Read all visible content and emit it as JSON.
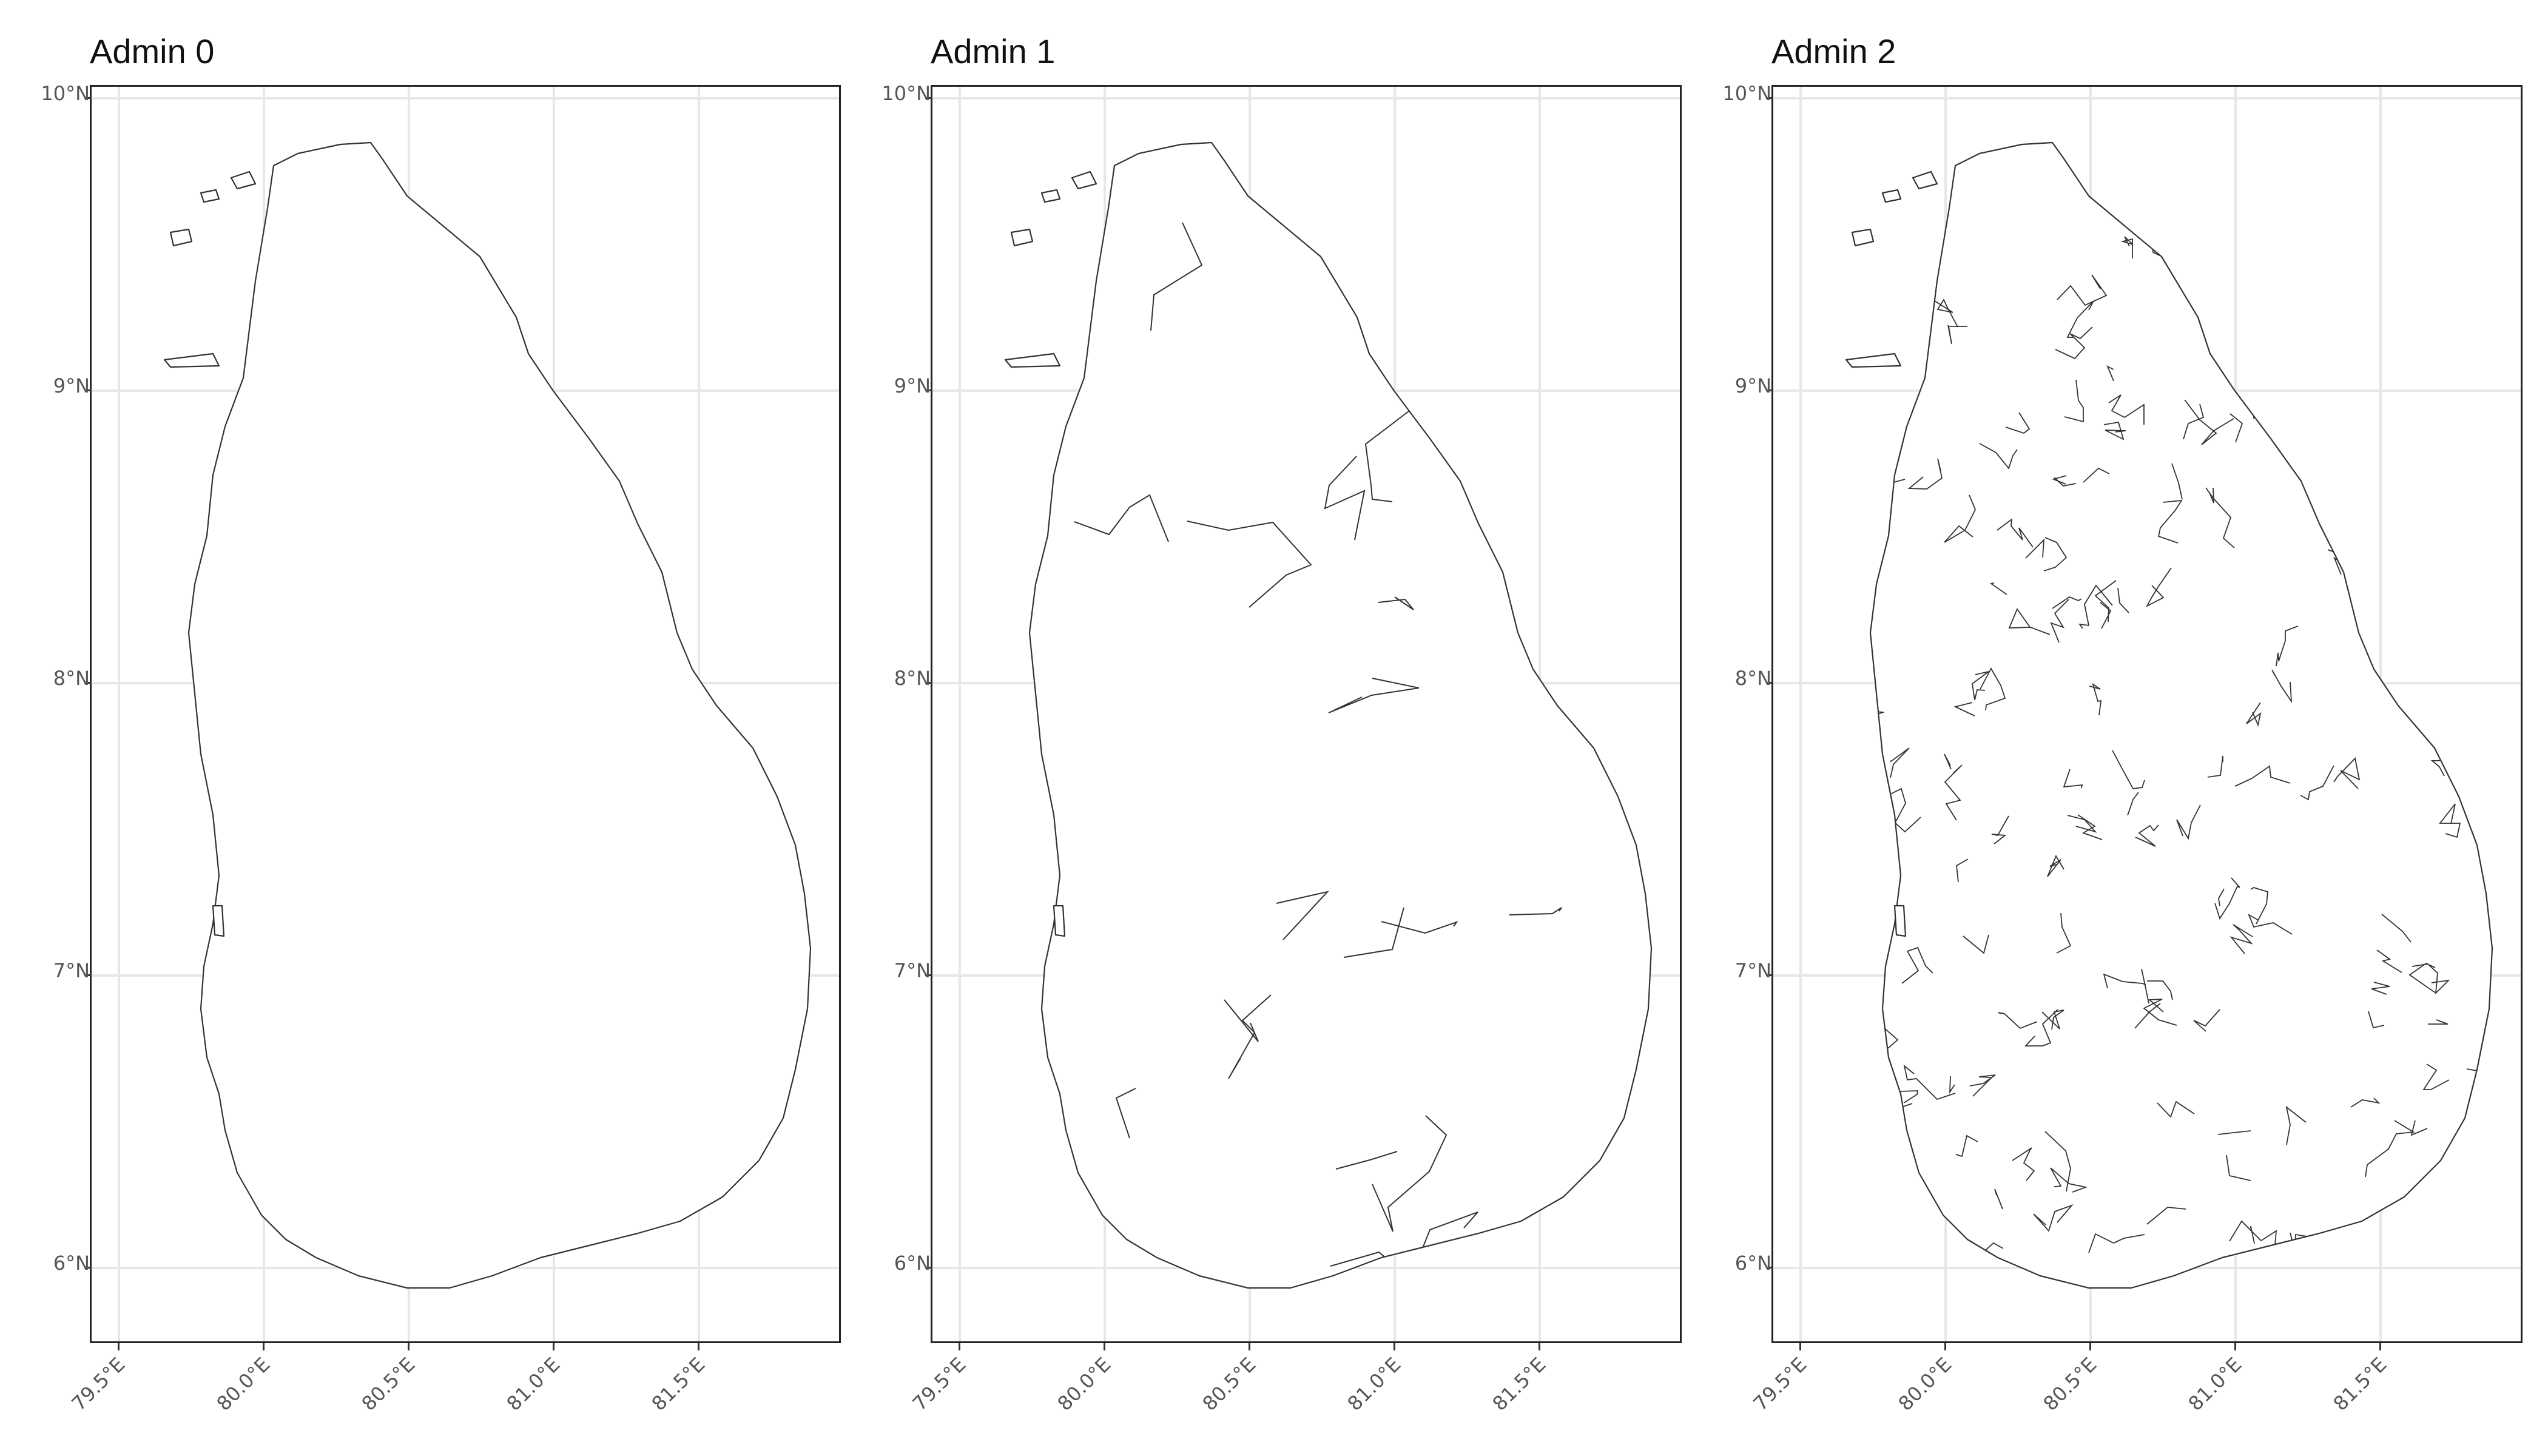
{
  "panels": [
    {
      "title": "Admin 0"
    },
    {
      "title": "Admin 1"
    },
    {
      "title": "Admin 2"
    }
  ],
  "axis": {
    "y_ticks": [
      "10°N",
      "9°N",
      "8°N",
      "7°N",
      "6°N"
    ],
    "x_ticks": [
      "79.5°E",
      "80.0°E",
      "80.5°E",
      "81.0°E",
      "81.5°E"
    ]
  },
  "map": {
    "region_outline_color": "#333333",
    "grid_color": "#e7e7e7",
    "levels": [
      0,
      1,
      2
    ]
  }
}
